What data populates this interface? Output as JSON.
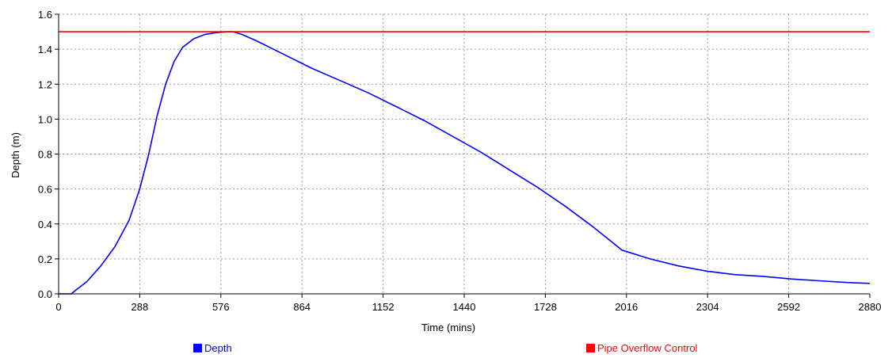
{
  "chart_data": {
    "type": "line",
    "title": "",
    "xlabel": "Time (mins)",
    "ylabel": "Depth (m)",
    "xlim": [
      0,
      2880
    ],
    "ylim": [
      0,
      1.6
    ],
    "x_ticks": [
      "0",
      "288",
      "576",
      "864",
      "1152",
      "1440",
      "1728",
      "2016",
      "2304",
      "2592",
      "2880"
    ],
    "y_ticks": [
      "0.0",
      "0.2",
      "0.4",
      "0.6",
      "0.8",
      "1.0",
      "1.2",
      "1.4",
      "1.6"
    ],
    "grid": true,
    "legend_position": "bottom",
    "series": [
      {
        "name": "Depth",
        "color": "#0000ff",
        "x": [
          0,
          45,
          60,
          100,
          150,
          200,
          250,
          288,
          320,
          350,
          380,
          410,
          440,
          480,
          520,
          560,
          600,
          620,
          650,
          700,
          800,
          900,
          1000,
          1100,
          1200,
          1300,
          1400,
          1500,
          1600,
          1700,
          1800,
          1900,
          2000,
          2100,
          2200,
          2300,
          2400,
          2500,
          2600,
          2700,
          2800,
          2880
        ],
        "y": [
          0,
          0,
          0.02,
          0.07,
          0.16,
          0.27,
          0.42,
          0.6,
          0.8,
          1.02,
          1.2,
          1.33,
          1.41,
          1.46,
          1.485,
          1.495,
          1.5,
          1.5,
          1.485,
          1.45,
          1.37,
          1.29,
          1.22,
          1.15,
          1.07,
          0.99,
          0.9,
          0.81,
          0.71,
          0.61,
          0.5,
          0.38,
          0.25,
          0.2,
          0.16,
          0.13,
          0.11,
          0.1,
          0.085,
          0.075,
          0.065,
          0.06
        ]
      },
      {
        "name": "Pipe Overflow Control",
        "color": "#ff0000",
        "x": [
          0,
          2880
        ],
        "y": [
          1.5,
          1.5
        ]
      }
    ]
  }
}
